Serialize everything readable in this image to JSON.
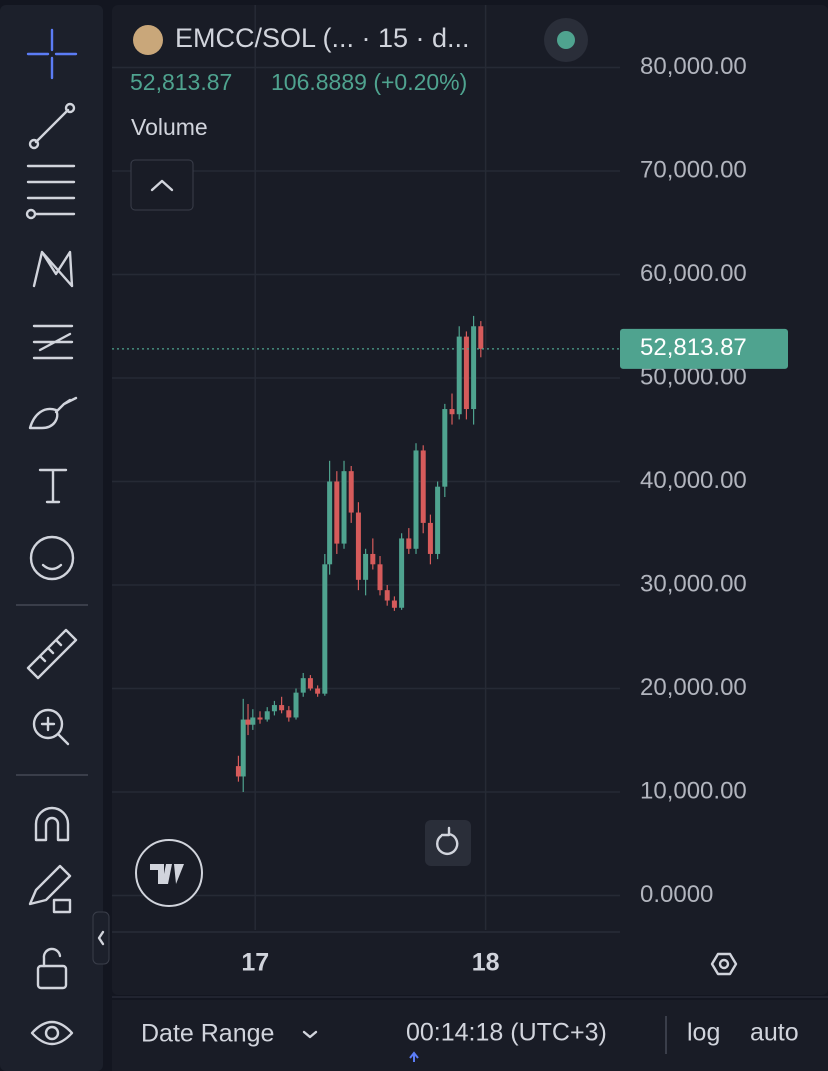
{
  "ui": {
    "title": "EMCC/SOL (... · 15 · d...",
    "last": "52,813.87",
    "change": "106.8889 (+0.20%)",
    "pane_label": "Volume",
    "date_range": "Date Range",
    "clock": "00:14:18 (UTC+3)",
    "log": "log",
    "auto": "auto"
  },
  "chart_data": {
    "type": "candlestick",
    "up_color": "#4fa38f",
    "down_color": "#d65b5b",
    "grid": true,
    "x": [
      -1.75,
      -1.25,
      -0.75,
      -0.25,
      0.5,
      1.25,
      2.0,
      2.75,
      3.5,
      4.25,
      5.0,
      5.75,
      6.5,
      7.25,
      7.75,
      8.5,
      9.25,
      10.0,
      10.75,
      11.5,
      12.25,
      13.0,
      13.75,
      14.5,
      15.25,
      16.0,
      16.75,
      17.5,
      18.25,
      19.0,
      19.75,
      20.5,
      21.25,
      22.0,
      22.75,
      23.5
    ],
    "open": [
      12500,
      11500,
      17000,
      16500,
      17200,
      17000,
      17800,
      18400,
      17900,
      17200,
      19600,
      21000,
      20000,
      19500,
      32000,
      40000,
      34000,
      41000,
      37000,
      30500,
      33000,
      32000,
      29500,
      28500,
      27800,
      34500,
      33500,
      43000,
      36000,
      33000,
      39500,
      47000,
      46500,
      54000,
      47000,
      55000
    ],
    "high": [
      13500,
      19000,
      18500,
      18000,
      17800,
      18200,
      18800,
      19200,
      18300,
      20000,
      21500,
      21300,
      20300,
      33000,
      42000,
      41000,
      42000,
      41500,
      38000,
      33500,
      34500,
      32800,
      30000,
      28900,
      35000,
      35500,
      43700,
      43500,
      36800,
      40000,
      47500,
      48500,
      55000,
      54500,
      56000,
      55500
    ],
    "low": [
      11000,
      10000,
      15500,
      16000,
      16600,
      16800,
      17400,
      17600,
      16800,
      17000,
      19200,
      19800,
      19200,
      19300,
      31000,
      33000,
      33500,
      36000,
      29500,
      29000,
      31500,
      29000,
      28000,
      27500,
      27600,
      33000,
      33000,
      35000,
      32000,
      32500,
      38500,
      45500,
      46000,
      46000,
      45500,
      52000
    ],
    "close": [
      11500,
      17000,
      16500,
      17200,
      17000,
      17800,
      18400,
      17900,
      17200,
      19600,
      21000,
      20000,
      19500,
      32000,
      40000,
      34000,
      41000,
      37000,
      30500,
      33000,
      32000,
      29500,
      28500,
      27800,
      34500,
      33500,
      43000,
      36000,
      33000,
      39500,
      47000,
      46500,
      54000,
      47000,
      55000,
      52813.87
    ],
    "price_line": {
      "value": 52813.87,
      "label": "52,813.87"
    },
    "xlim": [
      -14.92,
      38.0
    ],
    "xticks": [
      {
        "value": 0,
        "label": "17"
      },
      {
        "value": 24,
        "label": "18"
      }
    ],
    "ylim": [
      -3333,
      86039
    ],
    "yticks": [
      {
        "value": 0,
        "label": "0.0000"
      },
      {
        "value": 10000,
        "label": "10,000.00"
      },
      {
        "value": 20000,
        "label": "20,000.00"
      },
      {
        "value": 30000,
        "label": "30,000.00"
      },
      {
        "value": 40000,
        "label": "40,000.00"
      },
      {
        "value": 50000,
        "label": "50,000.00"
      },
      {
        "value": 60000,
        "label": "60,000.00"
      },
      {
        "value": 70000,
        "label": "70,000.00"
      },
      {
        "value": 80000,
        "label": "80,000.00"
      }
    ]
  }
}
